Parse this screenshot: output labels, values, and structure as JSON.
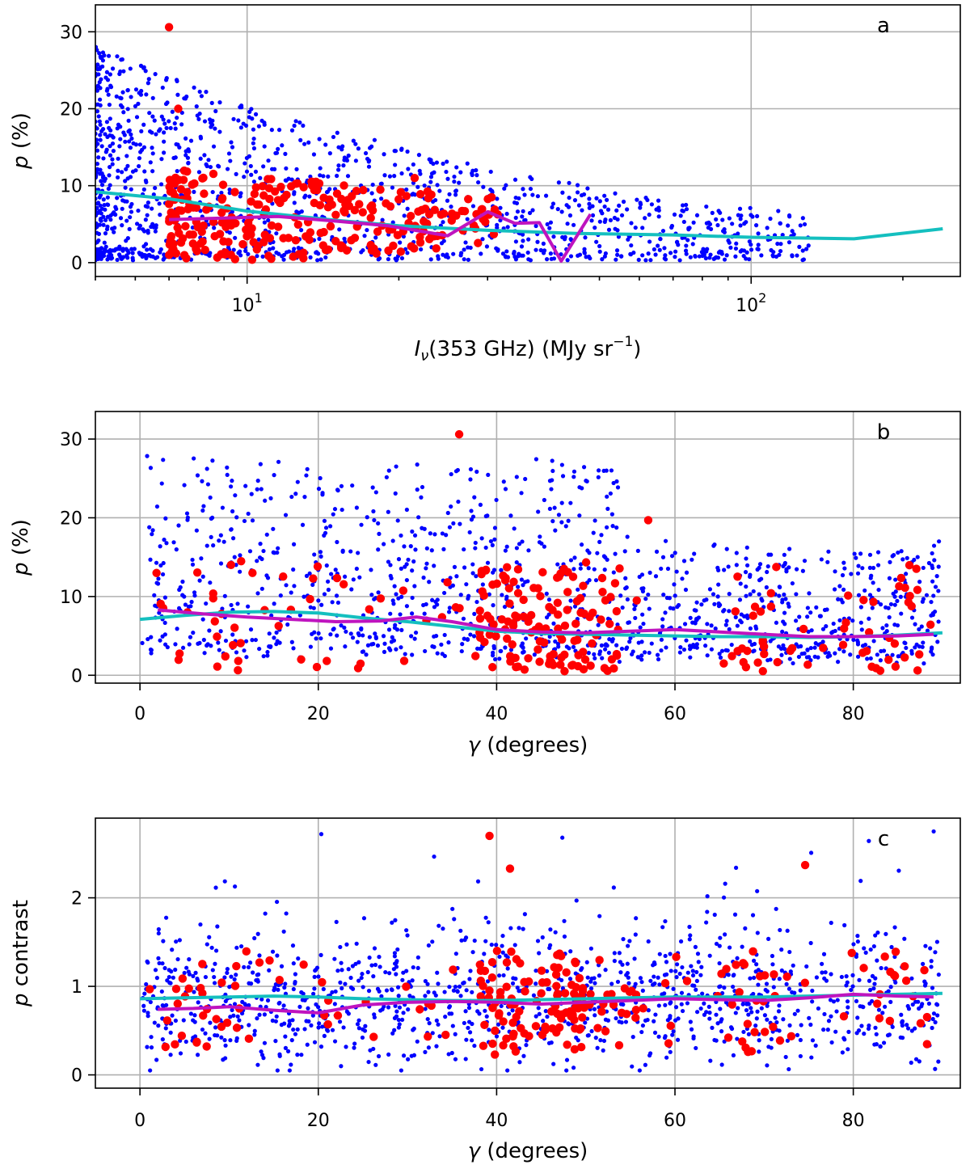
{
  "colors": {
    "blue_points": "#0000ff",
    "red_points": "#ff0000",
    "cyan_line": "#14bfbf",
    "magenta_line": "#bf14bf"
  },
  "chart_data": [
    {
      "id": "a",
      "type": "scatter",
      "panel_letter": "a",
      "xscale": "log",
      "xlim": [
        5.0,
        260
      ],
      "ylim": [
        -1.8,
        33.5
      ],
      "xticks": [
        {
          "value": 10,
          "base": "10",
          "exp": "1"
        },
        {
          "value": 100,
          "base": "10",
          "exp": "2"
        }
      ],
      "yticks": [
        {
          "value": 0,
          "label": "0"
        },
        {
          "value": 10,
          "label": "10"
        },
        {
          "value": 20,
          "label": "20"
        },
        {
          "value": 30,
          "label": "30"
        }
      ],
      "xlabel": {
        "main": "I",
        "sub": "ν",
        "rest": "(353 GHz) (MJy sr",
        "sup": "−1",
        "close": ")"
      },
      "ylabel": {
        "italic": "p",
        "rest": " (%)"
      },
      "series": [
        {
          "name": "cyan running mean",
          "kind": "line",
          "x": [
            5,
            7,
            10,
            15,
            20,
            30,
            45,
            70,
            100,
            160,
            240
          ],
          "y": [
            9.2,
            8.3,
            6.7,
            5.5,
            4.8,
            4.2,
            3.8,
            3.6,
            3.3,
            3.1,
            4.4
          ]
        },
        {
          "name": "magenta running mean",
          "kind": "line",
          "x": [
            7.0,
            9.0,
            11.5,
            15.0,
            19.0,
            25.0,
            30.0,
            34.0,
            38.0,
            42.0,
            48.0
          ],
          "y": [
            5.6,
            5.8,
            6.0,
            5.4,
            4.8,
            3.5,
            6.6,
            5.1,
            5.2,
            0.2,
            6.3
          ]
        }
      ]
    },
    {
      "id": "b",
      "type": "scatter",
      "panel_letter": "b",
      "xscale": "linear",
      "xlim": [
        -5,
        92
      ],
      "ylim": [
        -1.0,
        33.5
      ],
      "xticks": [
        {
          "value": 0,
          "label": "0"
        },
        {
          "value": 20,
          "label": "20"
        },
        {
          "value": 40,
          "label": "40"
        },
        {
          "value": 60,
          "label": "60"
        },
        {
          "value": 80,
          "label": "80"
        }
      ],
      "yticks": [
        {
          "value": 0,
          "label": "0"
        },
        {
          "value": 10,
          "label": "10"
        },
        {
          "value": 20,
          "label": "20"
        },
        {
          "value": 30,
          "label": "30"
        }
      ],
      "xlabel": {
        "italic": "γ",
        "rest": " (degrees)"
      },
      "ylabel": {
        "italic": "p",
        "rest": " (%)"
      },
      "series": [
        {
          "name": "cyan running mean",
          "kind": "line",
          "x": [
            0,
            5,
            10,
            15,
            20,
            25,
            30,
            35,
            40,
            45,
            50,
            55,
            60,
            65,
            70,
            75,
            80,
            85,
            90
          ],
          "y": [
            7.1,
            7.6,
            8.0,
            8.1,
            7.9,
            7.3,
            6.8,
            6.2,
            5.6,
            5.3,
            5.2,
            5.1,
            5.0,
            4.9,
            4.9,
            4.8,
            4.9,
            5.1,
            5.4
          ]
        },
        {
          "name": "magenta running mean",
          "kind": "line",
          "x": [
            2,
            7,
            12,
            17,
            22,
            27,
            31,
            35,
            40,
            45,
            50,
            55,
            60,
            65,
            70,
            75,
            80,
            85,
            89
          ],
          "y": [
            8.3,
            7.8,
            7.4,
            7.1,
            6.8,
            6.9,
            7.4,
            6.8,
            5.8,
            5.5,
            5.4,
            5.6,
            5.8,
            5.5,
            5.2,
            4.9,
            4.9,
            5.0,
            5.2
          ]
        }
      ]
    },
    {
      "id": "c",
      "type": "scatter",
      "panel_letter": "c",
      "xscale": "linear",
      "xlim": [
        -5,
        92
      ],
      "ylim": [
        -0.15,
        2.9
      ],
      "xticks": [
        {
          "value": 0,
          "label": "0"
        },
        {
          "value": 20,
          "label": "20"
        },
        {
          "value": 40,
          "label": "40"
        },
        {
          "value": 60,
          "label": "60"
        },
        {
          "value": 80,
          "label": "80"
        }
      ],
      "yticks": [
        {
          "value": 0,
          "label": "0"
        },
        {
          "value": 1,
          "label": "1"
        },
        {
          "value": 2,
          "label": "2"
        }
      ],
      "xlabel": {
        "italic": "γ",
        "rest": " (degrees)"
      },
      "ylabel": {
        "italic": "p",
        "rest": " contrast"
      },
      "series": [
        {
          "name": "cyan running mean",
          "kind": "line",
          "x": [
            0,
            5,
            10,
            15,
            20,
            25,
            30,
            35,
            40,
            45,
            50,
            55,
            60,
            65,
            70,
            75,
            80,
            85,
            90
          ],
          "y": [
            0.86,
            0.87,
            0.88,
            0.89,
            0.88,
            0.86,
            0.85,
            0.84,
            0.84,
            0.85,
            0.86,
            0.87,
            0.88,
            0.88,
            0.88,
            0.89,
            0.9,
            0.91,
            0.92
          ]
        },
        {
          "name": "magenta running mean",
          "kind": "line",
          "x": [
            2,
            6,
            10,
            15,
            20,
            25,
            30,
            35,
            40,
            45,
            50,
            55,
            60,
            65,
            70,
            75,
            80,
            85,
            89
          ],
          "y": [
            0.74,
            0.75,
            0.77,
            0.73,
            0.7,
            0.79,
            0.82,
            0.83,
            0.82,
            0.8,
            0.82,
            0.84,
            0.86,
            0.85,
            0.84,
            0.87,
            0.91,
            0.89,
            0.88
          ]
        }
      ]
    }
  ]
}
